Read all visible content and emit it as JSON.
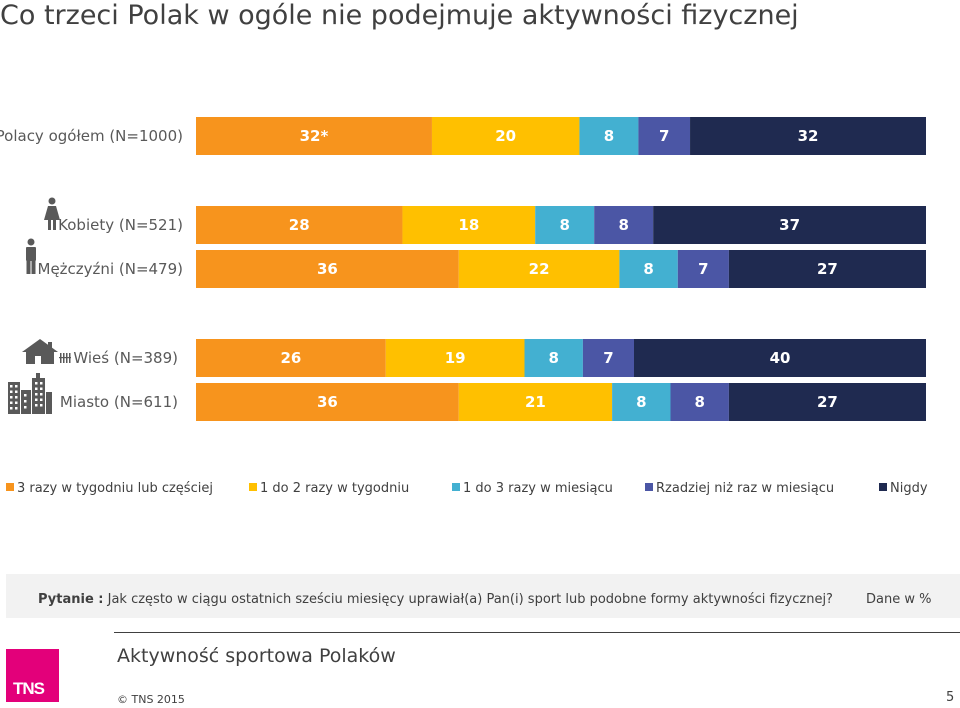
{
  "title": "Co trzeci Polak w ogóle nie podejmuje aktywności fizycznej",
  "colors": {
    "s1": "#f7941d",
    "s2": "#ffc000",
    "s3": "#43b0d1",
    "s4": "#4b56a5",
    "s5": "#1f2a50"
  },
  "icons": {
    "kobiety": "woman-icon",
    "mezczyzni": "man-icon",
    "wies": "village-house-icon",
    "miasto": "city-buildings-icon"
  },
  "chart_data": {
    "type": "bar",
    "stacked": true,
    "orientation": "horizontal",
    "unit": "%",
    "categories": [
      "Polacy ogółem (N=1000)",
      "Kobiety (N=521)",
      "Mężczyźni (N=479)",
      "Wieś (N=389)",
      "Miasto  (N=611)"
    ],
    "series": [
      {
        "name": "3 razy w tygodniu lub częściej",
        "values": [
          32,
          28,
          36,
          26,
          36
        ],
        "labels": [
          "32*",
          "28",
          "36",
          "26",
          "36"
        ]
      },
      {
        "name": "1 do 2 razy w tygodniu",
        "values": [
          20,
          18,
          22,
          19,
          21
        ],
        "labels": [
          "20",
          "18",
          "22",
          "19",
          "21"
        ]
      },
      {
        "name": "1 do 3 razy w miesiącu",
        "values": [
          8,
          8,
          8,
          8,
          8
        ],
        "labels": [
          "8",
          "8",
          "8",
          "8",
          "8"
        ]
      },
      {
        "name": "Rzadziej niż raz w miesiącu",
        "values": [
          7,
          8,
          7,
          7,
          8
        ],
        "labels": [
          "7",
          "8",
          "7",
          "7",
          "8"
        ]
      },
      {
        "name": "Nigdy",
        "values": [
          32,
          37,
          27,
          40,
          27
        ],
        "labels": [
          "32",
          "37",
          "27",
          "40",
          "27"
        ]
      }
    ],
    "legend_position": "bottom",
    "grid": false
  },
  "question": {
    "prefix": "Pytanie :",
    "text": " Jak często w ciągu ostatnich sześciu miesięcy uprawiał(a) Pan(i) sport lub podobne formy aktywności fizycznej?",
    "unit": "Dane w %"
  },
  "footer": {
    "title": "Aktywność sportowa Polaków",
    "copyright": "© TNS 2015",
    "page": "5",
    "logo_text": "TNS"
  }
}
